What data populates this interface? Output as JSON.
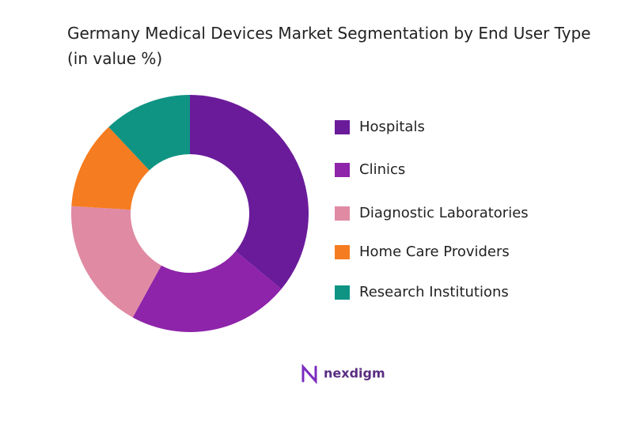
{
  "chart_data": {
    "type": "donut",
    "title": "Germany Medical Devices Market Segmentation by End User Type (in value %)",
    "categories": [
      "Hospitals",
      "Clinics",
      "Diagnostic Laboratories",
      "Home Care Providers",
      "Research Institutions"
    ],
    "values": [
      36,
      22,
      18,
      12,
      12
    ],
    "colors": [
      "#6a1b9a",
      "#8e24aa",
      "#e08aa4",
      "#f57c20",
      "#0f9484"
    ],
    "legend": "right",
    "logo": "nexdigm"
  }
}
